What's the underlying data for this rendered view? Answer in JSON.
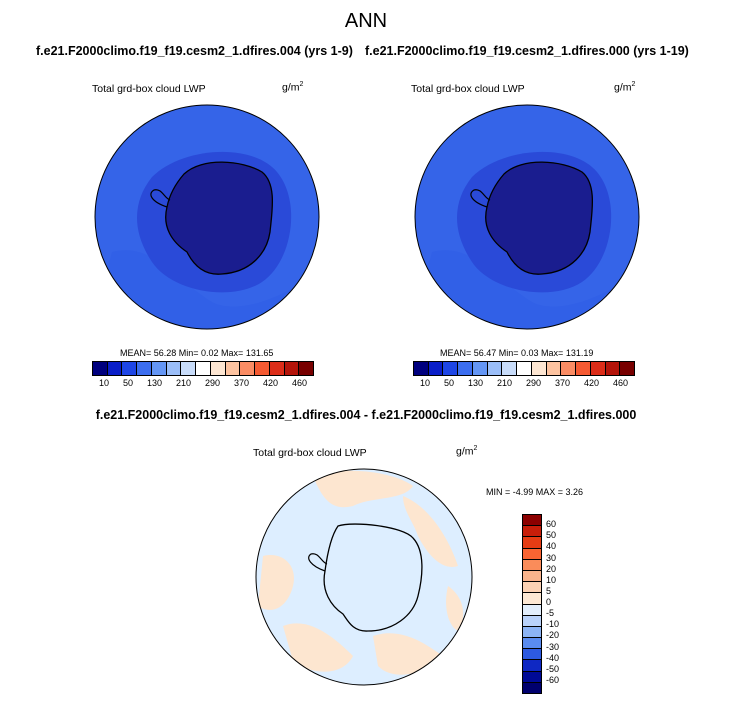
{
  "page_title": "ANN",
  "panels": [
    {
      "case_title": "f.e21.F2000climo.f19_f19.cesm2_1.dfires.004 (yrs 1-9)",
      "variable": "Total grd-box cloud LWP",
      "units_base": "g/m",
      "units_sup": "2",
      "stats": "MEAN=  56.28  Min=   0.02  Max= 131.65"
    },
    {
      "case_title": "f.e21.F2000climo.f19_f19.cesm2_1.dfires.000 (yrs 1-19)",
      "variable": "Total grd-box cloud LWP",
      "units_base": "g/m",
      "units_sup": "2",
      "stats": "MEAN=  56.47  Min=   0.03  Max= 131.19"
    }
  ],
  "diff": {
    "title": "f.e21.F2000climo.f19_f19.cesm2_1.dfires.004 - f.e21.F2000climo.f19_f19.cesm2_1.dfires.000",
    "variable": "Total grd-box cloud LWP",
    "units_base": "g/m",
    "units_sup": "2",
    "stats": "MIN =  -4.99 MAX =    3.26"
  },
  "colorbar_main": {
    "labels": [
      "10",
      "50",
      "130",
      "210",
      "290",
      "370",
      "420",
      "460"
    ],
    "colors": [
      "#00007e",
      "#0a1ec8",
      "#1e46e6",
      "#3c6ef0",
      "#6496f5",
      "#9bbef8",
      "#c8dcfa",
      "#ffffff",
      "#fde6d2",
      "#fdc3a0",
      "#fa8c64",
      "#f55a32",
      "#dc2d19",
      "#b4140a",
      "#780000"
    ]
  },
  "colorbar_diff": {
    "labels": [
      "60",
      "50",
      "40",
      "30",
      "20",
      "10",
      "5",
      "0",
      "-5",
      "-10",
      "-20",
      "-30",
      "-40",
      "-50",
      "-60"
    ],
    "colors": [
      "#8c0000",
      "#c81e0a",
      "#e63c14",
      "#fa6432",
      "#fa8c5a",
      "#fab48c",
      "#fcd2b4",
      "#fde8d4",
      "#e2eefc",
      "#b9d2fa",
      "#8cb4f5",
      "#5a8cf0",
      "#2d5ae1",
      "#0f28c3",
      "#000a96",
      "#00006e"
    ]
  },
  "map_colors": {
    "ocean_main": "#3564e8",
    "ocean_mid": "#2a4ad8",
    "land_main": "#1a1d8f",
    "shelf_main": "#2233b8",
    "diff_neutral": "#ddeeff",
    "diff_warm": "#fde6d0"
  }
}
